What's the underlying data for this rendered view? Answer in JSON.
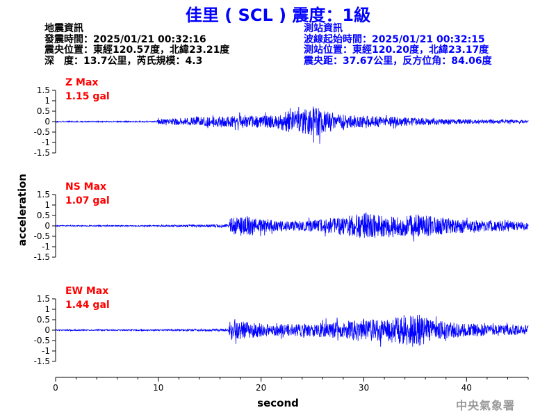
{
  "header": {
    "title": "佳里 ( SCL ) 震度：1級"
  },
  "quake_info": {
    "heading": "地震資訊",
    "origin_time": "發震時間：2025/01/21 00:32:16",
    "epicenter": "震央位置：東經120.57度，北緯23.21度",
    "depth_magnitude": "深　度：13.7公里，芮氏規模：4.3"
  },
  "station_info": {
    "heading": "測站資訊",
    "wave_start": "波線起始時間：2025/01/21 00:32:15",
    "location": "測站位置：東經120.20度，北緯23.17度",
    "distance": "震央距：37.67公里，反方位角：84.06度"
  },
  "watermark": "中央氣象署",
  "colors": {
    "trace": "#0000ff",
    "max_label": "#ff0000",
    "title": "#0000ff"
  },
  "chart_data": {
    "type": "line",
    "xlabel": "second",
    "ylabel": "acceleration",
    "xlim": [
      0,
      46
    ],
    "ylim": [
      -1.5,
      1.5
    ],
    "x_ticks": [
      0,
      10,
      20,
      30,
      40
    ],
    "y_ticks": [
      1.5,
      1,
      0.5,
      0,
      -0.5,
      -1,
      -1.5
    ],
    "y_tick_labels": [
      "1.5",
      "1",
      "0.5",
      "0",
      "-0.5",
      "-1",
      "-1.5"
    ],
    "grid": false,
    "panels": [
      {
        "component": "Z",
        "max_label": "Z Max",
        "max_value_label": "1.15 gal",
        "max_gal": 1.15,
        "envelope": [
          [
            0,
            0.04
          ],
          [
            9.8,
            0.04
          ],
          [
            10.0,
            0.2
          ],
          [
            13,
            0.32
          ],
          [
            18,
            0.45
          ],
          [
            21.5,
            0.5
          ],
          [
            22.5,
            0.8
          ],
          [
            24,
            0.95
          ],
          [
            25.5,
            1.15
          ],
          [
            27,
            0.6
          ],
          [
            30,
            0.45
          ],
          [
            34,
            0.35
          ],
          [
            38,
            0.22
          ],
          [
            42,
            0.15
          ],
          [
            46,
            0.12
          ]
        ]
      },
      {
        "component": "NS",
        "max_label": "NS Max",
        "max_value_label": "1.07 gal",
        "max_gal": 1.07,
        "envelope": [
          [
            0,
            0.04
          ],
          [
            10,
            0.05
          ],
          [
            16.8,
            0.12
          ],
          [
            17.0,
            0.7
          ],
          [
            18.5,
            0.8
          ],
          [
            20,
            0.5
          ],
          [
            23,
            0.35
          ],
          [
            26,
            0.55
          ],
          [
            29,
            0.85
          ],
          [
            30,
            1.07
          ],
          [
            33,
            0.75
          ],
          [
            35.5,
            0.9
          ],
          [
            38,
            0.6
          ],
          [
            42,
            0.45
          ],
          [
            46,
            0.3
          ]
        ]
      },
      {
        "component": "EW",
        "max_label": "EW Max",
        "max_value_label": "1.44 gal",
        "max_gal": 1.44,
        "envelope": [
          [
            0,
            0.04
          ],
          [
            10,
            0.05
          ],
          [
            16.8,
            0.1
          ],
          [
            17.0,
            0.8
          ],
          [
            18.5,
            0.65
          ],
          [
            21,
            0.45
          ],
          [
            24,
            0.5
          ],
          [
            27,
            0.6
          ],
          [
            30,
            0.9
          ],
          [
            32,
            0.8
          ],
          [
            35,
            1.44
          ],
          [
            36.5,
            0.8
          ],
          [
            39,
            0.55
          ],
          [
            42,
            0.45
          ],
          [
            46,
            0.38
          ]
        ]
      }
    ]
  }
}
